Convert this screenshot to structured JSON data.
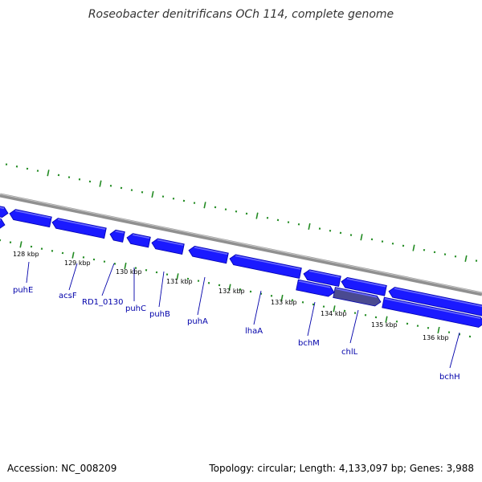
{
  "title": "Roseobacter denitrificans OCh 114, complete genome",
  "footer": {
    "accession": "Accession: NC_008209",
    "stats": "Topology: circular; Length: 4,133,097 bp; Genes: 3,988"
  },
  "colors": {
    "gene": "#1a1aff",
    "gene_dark": "#0000b0",
    "gene_light": "#6a6aff",
    "selected_gene": "#4a4a90",
    "backbone": "#909090",
    "tick": "#228b22",
    "label": "#0000aa"
  },
  "scale_labels": [
    "128 kbp",
    "129 kbp",
    "130 kbp",
    "131 kbp",
    "132 kbp",
    "133 kbp",
    "134 kbp",
    "135 kbp",
    "136 kbp"
  ],
  "gene_labels": [
    "puhE",
    "acsF",
    "RD1_0130",
    "puhC",
    "puhB",
    "puhA",
    "lhaA",
    "bchM",
    "chlL",
    "bchH"
  ]
}
